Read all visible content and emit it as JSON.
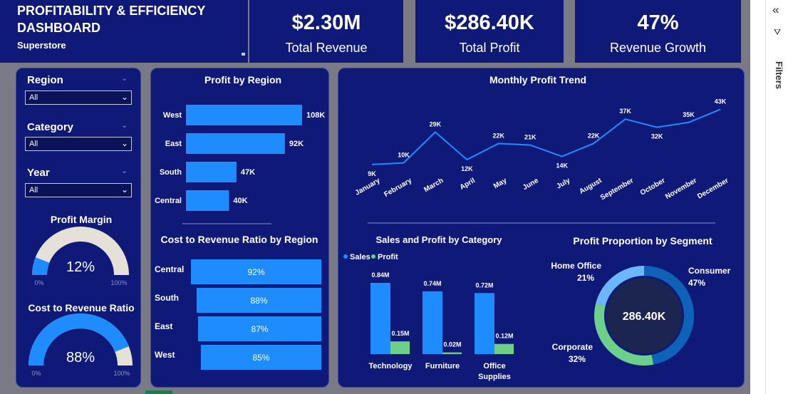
{
  "header": {
    "title_line1": "PROFITABILITY & EFFICIENCY",
    "title_line2": "DASHBOARD",
    "subtitle": "Superstore"
  },
  "kpis": [
    {
      "value": "$2.30M",
      "label": "Total Revenue"
    },
    {
      "value": "$286.40K",
      "label": "Total Profit"
    },
    {
      "value": "47%",
      "label": "Revenue Growth"
    }
  ],
  "slicers": [
    {
      "label": "Region",
      "value": "All"
    },
    {
      "label": "Category",
      "value": "All"
    },
    {
      "label": "Year",
      "value": "All"
    }
  ],
  "gauges": [
    {
      "title": "Profit Margin",
      "value_text": "12%",
      "value": 12,
      "min_label": "0%",
      "max_label": "100%"
    },
    {
      "title": "Cost to Revenue Ratio",
      "value_text": "88%",
      "value": 88,
      "min_label": "0%",
      "max_label": "100%"
    }
  ],
  "filters_pane": {
    "label": "Filters",
    "collapse_glyph": "«",
    "filter_glyph": "⛛"
  },
  "colors": {
    "background": "#0f1a78",
    "bar": "#1e8cff",
    "profit": "#6ccf8a",
    "gauge_track": "#e5e0d8",
    "donut_consumer": "#0e62b8",
    "donut_home": "#6cb6ff",
    "donut_corporate": "#6ccf8a"
  },
  "chart_data": [
    {
      "type": "bar",
      "title": "Profit by Region",
      "orientation": "horizontal",
      "categories": [
        "West",
        "East",
        "South",
        "Central"
      ],
      "values": [
        108,
        92,
        47,
        40
      ],
      "value_labels": [
        "108K",
        "92K",
        "47K",
        "40K"
      ]
    },
    {
      "type": "bar",
      "title": "Cost to Revenue Ratio by Region",
      "orientation": "horizontal",
      "categories": [
        "Central",
        "South",
        "East",
        "West"
      ],
      "values": [
        92,
        88,
        87,
        85
      ],
      "value_labels": [
        "92%",
        "88%",
        "87%",
        "85%"
      ]
    },
    {
      "type": "line",
      "title": "Monthly Profit Trend",
      "x": [
        "January",
        "February",
        "March",
        "April",
        "May",
        "June",
        "July",
        "August",
        "September",
        "October",
        "November",
        "December"
      ],
      "values": [
        9,
        10,
        29,
        12,
        22,
        21,
        14,
        22,
        37,
        32,
        35,
        43
      ],
      "value_labels": [
        "9K",
        "10K",
        "29K",
        "12K",
        "22K",
        "21K",
        "14K",
        "22K",
        "37K",
        "32K",
        "35K",
        "43K"
      ]
    },
    {
      "type": "bar",
      "title": "Sales and Profit by Category",
      "categories": [
        "Technology",
        "Furniture",
        "Office Supplies"
      ],
      "legend": [
        "Sales",
        "Profit"
      ],
      "series": [
        {
          "name": "Sales",
          "values": [
            0.84,
            0.74,
            0.72
          ],
          "value_labels": [
            "0.84M",
            "0.74M",
            "0.72M"
          ]
        },
        {
          "name": "Profit",
          "values": [
            0.15,
            0.02,
            0.12
          ],
          "value_labels": [
            "0.15M",
            "0.02M",
            "0.12M"
          ]
        }
      ]
    },
    {
      "type": "pie",
      "title": "Profit Proportion by Segment",
      "center_label": "286.40K",
      "slices": [
        {
          "name": "Consumer",
          "value": 47,
          "label": "47%"
        },
        {
          "name": "Corporate",
          "value": 32,
          "label": "32%"
        },
        {
          "name": "Home Office",
          "value": 21,
          "label": "21%"
        }
      ]
    }
  ]
}
